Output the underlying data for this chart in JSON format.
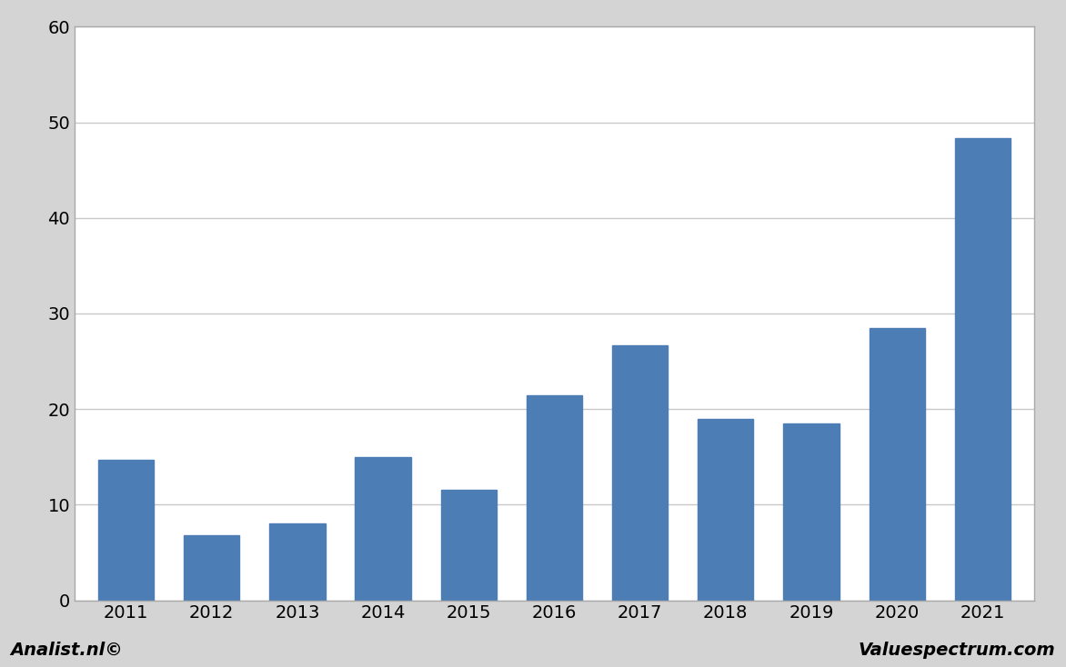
{
  "categories": [
    "2011",
    "2012",
    "2013",
    "2014",
    "2015",
    "2016",
    "2017",
    "2018",
    "2019",
    "2020",
    "2021"
  ],
  "values": [
    14.7,
    6.8,
    8.0,
    15.0,
    11.6,
    21.4,
    26.7,
    19.0,
    18.5,
    28.5,
    48.3
  ],
  "bar_color": "#4d7db5",
  "background_color": "#d4d4d4",
  "plot_background_color": "#ffffff",
  "ylim": [
    0,
    60
  ],
  "yticks": [
    0,
    10,
    20,
    30,
    40,
    50,
    60
  ],
  "grid_color": "#c8c8c8",
  "grid_linewidth": 1.0,
  "bar_width": 0.65,
  "bottom_label_left": "Analist.nl©",
  "bottom_label_right": "Valuespectrum.com",
  "tick_fontsize": 14,
  "label_fontsize": 14
}
